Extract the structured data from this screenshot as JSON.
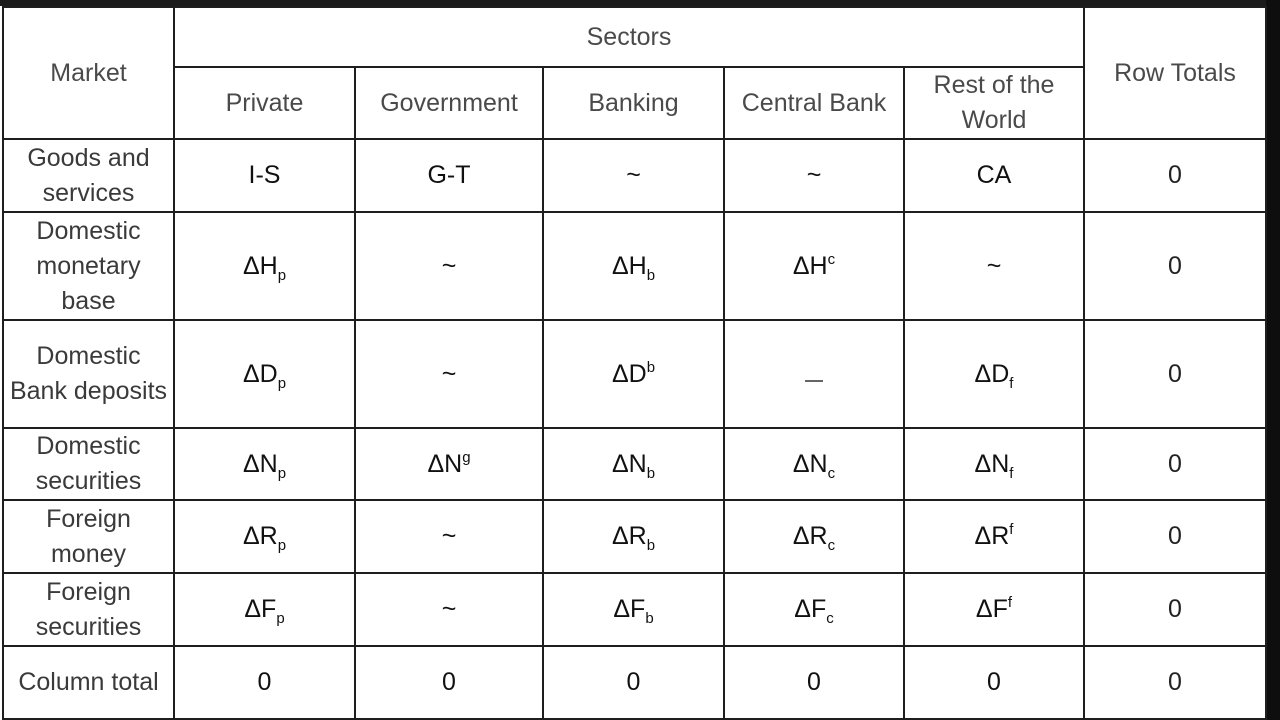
{
  "header": {
    "market": "Market",
    "sectors": "Sectors",
    "row_totals": "Row Totals",
    "columns": [
      "Private",
      "Government",
      "Banking",
      "Central Bank",
      "Rest of the World"
    ]
  },
  "rows": [
    {
      "label": "Goods and services",
      "cells": [
        {
          "base": "I-S",
          "sub": "",
          "sup": ""
        },
        {
          "base": "G-T",
          "sub": "",
          "sup": ""
        },
        {
          "base": "~",
          "sub": "",
          "sup": ""
        },
        {
          "base": "~",
          "sub": "",
          "sup": ""
        },
        {
          "base": "CA",
          "sub": "",
          "sup": ""
        }
      ],
      "total": "0"
    },
    {
      "label": "Domestic monetary base",
      "cells": [
        {
          "base": "ΔH",
          "sub": "p",
          "sup": ""
        },
        {
          "base": "~",
          "sub": "",
          "sup": ""
        },
        {
          "base": "ΔH",
          "sub": "b",
          "sup": ""
        },
        {
          "base": "ΔH",
          "sub": "",
          "sup": "c"
        },
        {
          "base": "~",
          "sub": "",
          "sup": ""
        }
      ],
      "total": "0"
    },
    {
      "label": "Domestic Bank deposits",
      "cells": [
        {
          "base": "ΔD",
          "sub": "p",
          "sup": ""
        },
        {
          "base": "~",
          "sub": "",
          "sup": ""
        },
        {
          "base": "ΔD",
          "sub": "",
          "sup": "b"
        },
        {
          "base": "_",
          "sub": "",
          "sup": ""
        },
        {
          "base": "ΔD",
          "sub": "f",
          "sup": ""
        }
      ],
      "total": "0"
    },
    {
      "label": "Domestic securities",
      "cells": [
        {
          "base": "ΔN",
          "sub": "p",
          "sup": ""
        },
        {
          "base": "ΔN",
          "sub": "",
          "sup": "g"
        },
        {
          "base": "ΔN",
          "sub": "b",
          "sup": ""
        },
        {
          "base": "ΔN",
          "sub": "c",
          "sup": ""
        },
        {
          "base": "ΔN",
          "sub": "f",
          "sup": ""
        }
      ],
      "total": "0"
    },
    {
      "label": "Foreign money",
      "cells": [
        {
          "base": "ΔR",
          "sub": "p",
          "sup": ""
        },
        {
          "base": "~",
          "sub": "",
          "sup": ""
        },
        {
          "base": "ΔR",
          "sub": "b",
          "sup": ""
        },
        {
          "base": "ΔR",
          "sub": "c",
          "sup": ""
        },
        {
          "base": "ΔR",
          "sub": "",
          "sup": "f"
        }
      ],
      "total": "0"
    },
    {
      "label": "Foreign securities",
      "cells": [
        {
          "base": "ΔF",
          "sub": "p",
          "sup": ""
        },
        {
          "base": "~",
          "sub": "",
          "sup": ""
        },
        {
          "base": "ΔF",
          "sub": "b",
          "sup": ""
        },
        {
          "base": "ΔF",
          "sub": "c",
          "sup": ""
        },
        {
          "base": "ΔF",
          "sub": "",
          "sup": "f"
        }
      ],
      "total": "0"
    },
    {
      "label": "Column total",
      "cells": [
        {
          "base": "0",
          "sub": "",
          "sup": ""
        },
        {
          "base": "0",
          "sub": "",
          "sup": ""
        },
        {
          "base": "0",
          "sub": "",
          "sup": ""
        },
        {
          "base": "0",
          "sub": "",
          "sup": ""
        },
        {
          "base": "0",
          "sub": "",
          "sup": ""
        }
      ],
      "total": "0"
    }
  ]
}
